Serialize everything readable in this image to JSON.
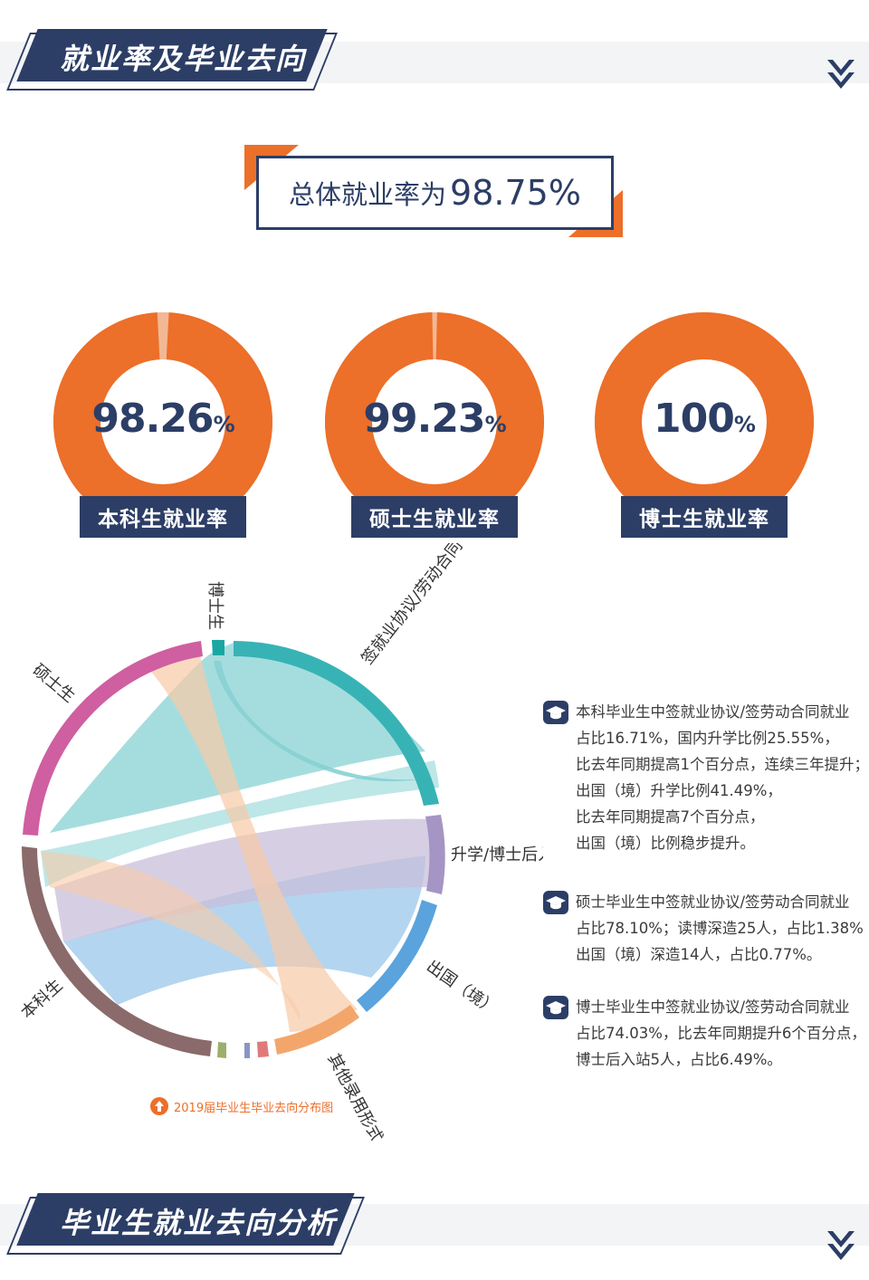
{
  "sections": {
    "section1_title": "就业率及毕业去向",
    "section2_title": "毕业生就业去向分析"
  },
  "overall": {
    "label": "总体就业率为",
    "value": "98.75%"
  },
  "colors": {
    "navy": "#2c3e66",
    "orange": "#ec6f2a",
    "light_orange": "#f2b894"
  },
  "donuts": [
    {
      "value_num": "98.26",
      "value_pct": "%",
      "label": "本科生就业率",
      "fraction": 0.9826
    },
    {
      "value_num": "99.23",
      "value_pct": "%",
      "label": "硕士生就业率",
      "fraction": 0.9923
    },
    {
      "value_num": "100",
      "value_pct": "%",
      "label": "博士生就业率",
      "fraction": 1.0
    }
  ],
  "chord": {
    "labels": {
      "doctor": "博士生",
      "master": "硕士生",
      "undergrad": "本科生",
      "contract": "签就业协议/劳动合同",
      "further_study": "升学/博士后入站",
      "abroad": "出国（境）",
      "other": "其他录用形式"
    },
    "caption": "2019届毕业生毕业去向分布图"
  },
  "chart_data": {
    "type": "chord",
    "sources": [
      "本科生",
      "硕士生",
      "博士生"
    ],
    "targets": [
      "签就业协议/劳动合同",
      "升学/博士后入站",
      "出国（境）",
      "其他录用形式"
    ],
    "colors": {
      "本科生": "#8a6a6a",
      "硕士生": "#cf5fa0",
      "博士生": "#1aa6a3",
      "签就业协议/劳动合同": "#37b3b6",
      "升学/博士后入站": "#a495c4",
      "出国（境）": "#5aa3dc",
      "其他录用形式": "#f3a66c"
    },
    "title": "2019届毕业生毕业去向分布图"
  },
  "notes": [
    {
      "lines": [
        "本科毕业生中签就业协议/签劳动合同就业",
        "占比16.71%，国内升学比例25.55%，",
        "比去年同期提高1个百分点，连续三年提升；",
        "出国（境）升学比例41.49%，",
        "比去年同期提高7个百分点，",
        "出国（境）比例稳步提升。"
      ]
    },
    {
      "lines": [
        "硕士毕业生中签就业协议/签劳动合同就业",
        "占比78.10%；读博深造25人，占比1.38%",
        "出国（境）深造14人，占比0.77%。"
      ]
    },
    {
      "lines": [
        "博士毕业生中签就业协议/签劳动合同就业",
        "占比74.03%，比去年同期提升6个百分点，",
        "博士后入站5人，占比6.49%。"
      ]
    }
  ]
}
